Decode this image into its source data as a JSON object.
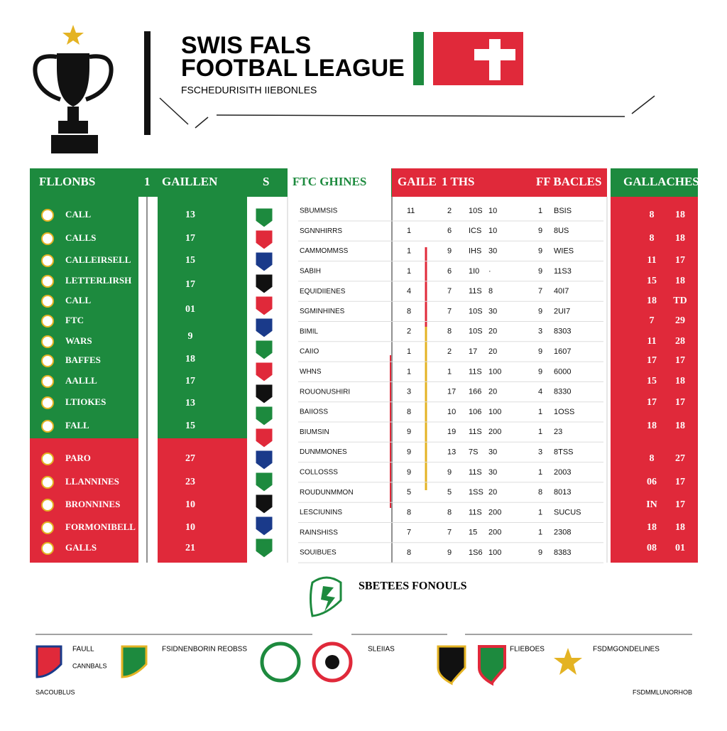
{
  "header": {
    "title_line1": "SWIS FALS",
    "title_line2": "FOOTBAL LEAGUE",
    "subtitle": "FSCHEDURISITH IIEBONLES"
  },
  "table": {
    "headers": [
      "FLLONBS",
      "1",
      "GAILLEN",
      "S",
      "FTC GHINES",
      "GAILE",
      "1 THS",
      "FF BACLES",
      "GALLACHES"
    ],
    "team_names": [
      "CALL",
      "CALLS",
      "CALLEIRSELL",
      "LETTERLIRSH",
      "CALL",
      "FTC",
      "WARS",
      "BAFFES",
      "AALLL",
      "LTIOKES",
      "FALL",
      "PARO",
      "LLANNINES",
      "BRONNINES",
      "FORMONIBELL",
      "GALLS"
    ],
    "team_numbers": [
      "13",
      "17",
      "15",
      "17",
      "01",
      "9",
      "18",
      "17",
      "13",
      "15",
      "27",
      "23",
      "10",
      "10",
      "21"
    ],
    "rows": [
      [
        "SBUMMSIS",
        "11",
        "2",
        "10S",
        "10",
        "1",
        "BSIS"
      ],
      [
        "SGNNHIRRS",
        "1",
        "6",
        "ICS",
        "10",
        "9",
        "8US"
      ],
      [
        "CAMMOMMSS",
        "1",
        "9",
        "IHS",
        "30",
        "9",
        "WIES"
      ],
      [
        "SABIH",
        "1",
        "6",
        "1I0",
        "·",
        "9",
        "11S3"
      ],
      [
        "EQUIDIIENES",
        "4",
        "7",
        "11S",
        "8",
        "7",
        "40I7"
      ],
      [
        "SGMINHINES",
        "8",
        "7",
        "10S",
        "30",
        "9",
        "2UI7"
      ],
      [
        "BIMIL",
        "2",
        "8",
        "10S",
        "20",
        "3",
        "8303"
      ],
      [
        "CAIIO",
        "1",
        "2",
        "17",
        "20",
        "9",
        "1607"
      ],
      [
        "WHNS",
        "1",
        "1",
        "11S",
        "100",
        "9",
        "6000"
      ],
      [
        "ROUONUSHIRI",
        "3",
        "17",
        "166",
        "20",
        "4",
        "8330"
      ],
      [
        "BAIIOSS",
        "8",
        "10",
        "106",
        "100",
        "1",
        "1OSS"
      ],
      [
        "BIUMSIN",
        "9",
        "19",
        "11S",
        "200",
        "1",
        "23"
      ],
      [
        "DUNMMONES",
        "9",
        "13",
        "7S",
        "30",
        "3",
        "8TSS"
      ],
      [
        "COLLOSSS",
        "9",
        "9",
        "11S",
        "30",
        "1",
        "2003"
      ],
      [
        "ROUDUNMMON",
        "5",
        "5",
        "1SS",
        "20",
        "8",
        "8013"
      ],
      [
        "LESCIUNINS",
        "8",
        "8",
        "11S",
        "200",
        "1",
        "SUCUS"
      ],
      [
        "RAINSHISS",
        "7",
        "7",
        "15",
        "200",
        "1",
        "2308"
      ],
      [
        "SOUIBUES",
        "8",
        "9",
        "1S6",
        "100",
        "9",
        "8383"
      ]
    ],
    "right_rows": [
      [
        "8",
        "18"
      ],
      [
        "8",
        "18"
      ],
      [
        "11",
        "17"
      ],
      [
        "15",
        "18"
      ],
      [
        "18",
        "TD"
      ],
      [
        "7",
        "29"
      ],
      [
        "11",
        "28"
      ],
      [
        "17",
        "17"
      ],
      [
        "15",
        "18"
      ],
      [
        "17",
        "17"
      ],
      [
        "18",
        "18"
      ],
      [
        "8",
        "27"
      ],
      [
        "06",
        "17"
      ],
      [
        "IN",
        "17"
      ],
      [
        "18",
        "18"
      ],
      [
        "08",
        "01"
      ]
    ]
  },
  "footer": {
    "title": "SBETEES FONOULS",
    "items": [
      "FAULL",
      "CANNBALS",
      "FSIDNENBORIN REOBSS",
      "SLEIIAS",
      "FLIEBOES",
      "FSDMGONDELINES"
    ],
    "left_note": "SACOUBLUS",
    "right_note": "FSDMMLUNORHOB"
  }
}
